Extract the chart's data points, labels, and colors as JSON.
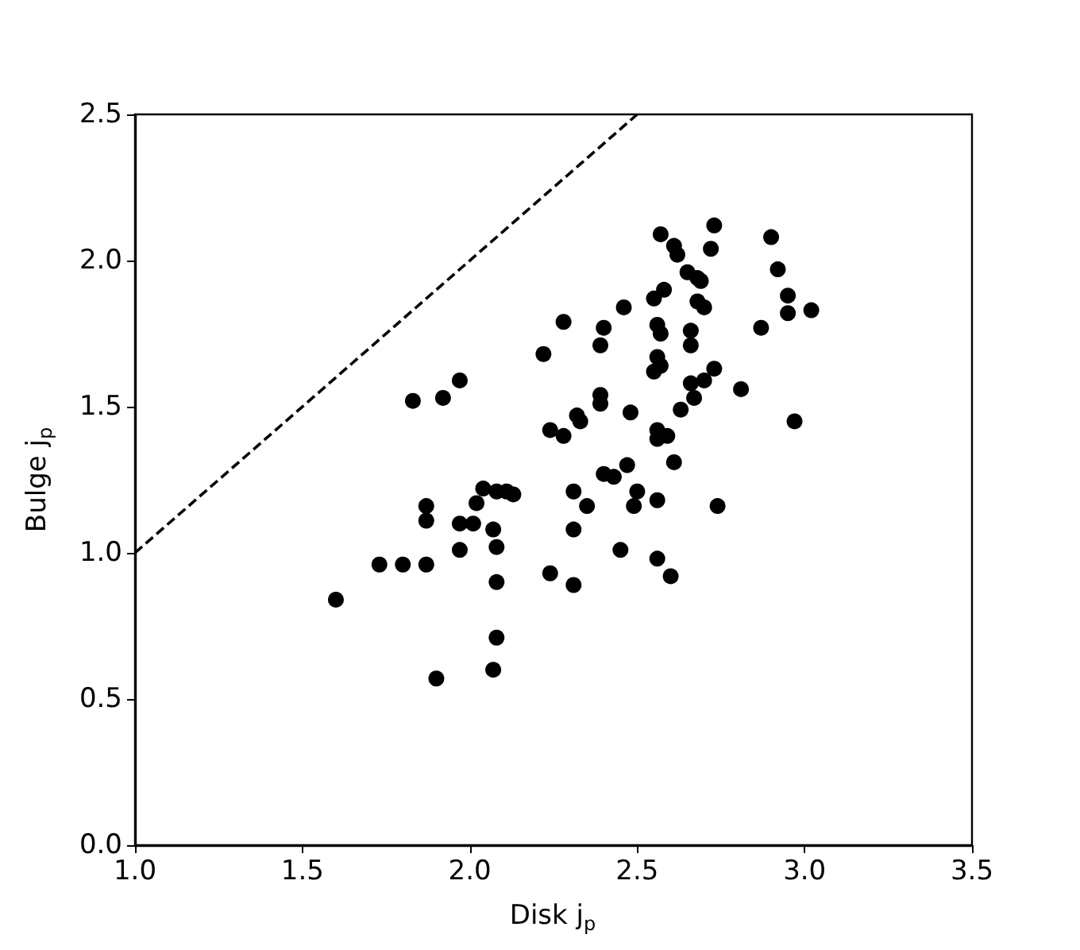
{
  "chart_data": {
    "type": "scatter",
    "xlabel": "Disk j$_{p}$",
    "ylabel": "Bulge j$_{p}$",
    "xlim": [
      1.0,
      3.5
    ],
    "xticks": [
      {
        "value": 1,
        "label": "1.0"
      },
      {
        "value": 1.5,
        "label": "1.5"
      },
      {
        "value": 2,
        "label": "2.0"
      },
      {
        "value": 2.5,
        "label": "2.5"
      },
      {
        "value": 3,
        "label": "3.0"
      },
      {
        "value": 3.5,
        "label": "3.5"
      }
    ],
    "ylim": [
      0.0,
      2.5
    ],
    "yticks": [
      {
        "value": 0,
        "label": "0.0"
      },
      {
        "value": 0.5,
        "label": "0.5"
      },
      {
        "value": 1,
        "label": "1.0"
      },
      {
        "value": 1.5,
        "label": "1.5"
      },
      {
        "value": 2,
        "label": "2.0"
      },
      {
        "value": 2.5,
        "label": "2.5"
      }
    ],
    "grid": false,
    "series": [
      {
        "marker": "circle",
        "color": "#000000",
        "x": [
          1.6,
          1.73,
          1.8,
          1.87,
          1.83,
          1.92,
          1.97,
          1.87,
          1.87,
          1.97,
          2.01,
          1.97,
          1.9,
          2.02,
          2.04,
          2.07,
          2.08,
          2.08,
          2.08,
          2.07,
          2.08,
          2.11,
          2.13,
          2.24,
          2.31,
          2.31,
          2.31,
          2.35,
          2.4,
          2.43,
          2.45,
          2.47,
          2.5,
          2.49,
          2.56,
          2.56,
          2.6,
          2.61,
          2.59,
          2.56,
          2.56,
          2.63,
          2.66,
          2.67,
          2.7,
          2.73,
          2.81,
          2.97,
          2.74,
          2.24,
          2.28,
          2.32,
          2.33,
          2.39,
          2.39,
          2.48,
          2.22,
          2.28,
          2.4,
          2.39,
          2.46,
          2.55,
          2.57,
          2.56,
          2.56,
          2.57,
          2.55,
          2.58,
          2.57,
          2.61,
          2.62,
          2.65,
          2.68,
          2.69,
          2.72,
          2.73,
          2.66,
          2.66,
          2.68,
          2.7,
          2.9,
          2.92,
          2.95,
          2.95,
          3.02,
          2.87
        ],
        "values": [
          0.84,
          0.96,
          0.96,
          0.96,
          1.52,
          1.53,
          1.59,
          1.11,
          1.16,
          1.1,
          1.1,
          1.01,
          0.57,
          1.17,
          1.22,
          1.08,
          1.02,
          0.9,
          0.71,
          0.6,
          1.21,
          1.21,
          1.2,
          0.93,
          0.89,
          1.08,
          1.21,
          1.16,
          1.27,
          1.26,
          1.01,
          1.3,
          1.21,
          1.16,
          1.18,
          0.98,
          0.92,
          1.31,
          1.4,
          1.39,
          1.42,
          1.49,
          1.58,
          1.53,
          1.59,
          1.63,
          1.56,
          1.45,
          1.16,
          1.42,
          1.4,
          1.47,
          1.45,
          1.54,
          1.51,
          1.48,
          1.68,
          1.79,
          1.77,
          1.71,
          1.84,
          1.62,
          1.64,
          1.67,
          1.78,
          1.75,
          1.87,
          1.9,
          2.09,
          2.05,
          2.02,
          1.96,
          1.94,
          1.93,
          2.04,
          2.12,
          1.76,
          1.71,
          1.86,
          1.84,
          2.08,
          1.97,
          1.88,
          1.82,
          1.83,
          1.77
        ]
      },
      {
        "type": "line",
        "marker": "none",
        "line_style": "dashed",
        "color": "#000000",
        "x": [
          1.0,
          2.5
        ],
        "values": [
          1.0,
          2.5
        ]
      }
    ]
  }
}
